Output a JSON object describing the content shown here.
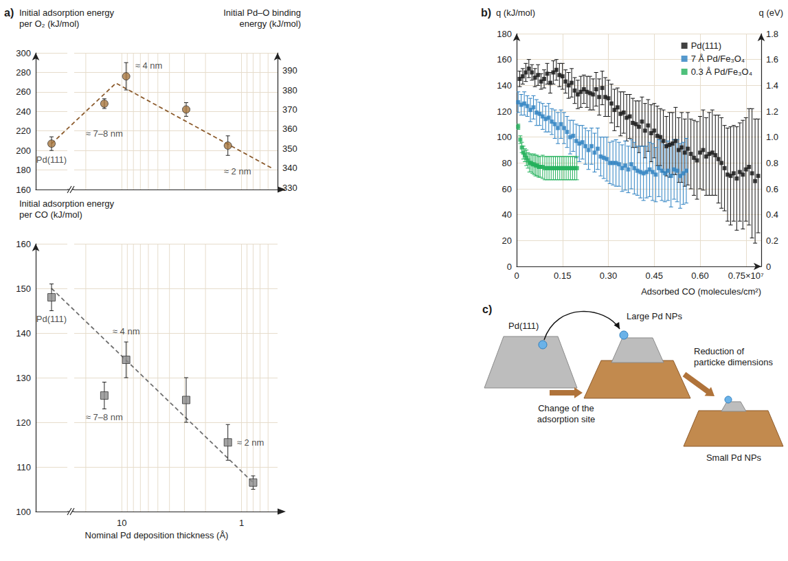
{
  "chart_data": [
    {
      "panel": "a)",
      "type": "scatter",
      "ylabel": "Initial adsorption energy per O₂ (kJ/mol)",
      "y2label": "Initial Pd–O binding energy (kJ/mol)",
      "reference": {
        "label": "Pd(111)",
        "value": 207,
        "error": 7
      },
      "x": [
        14,
        9.2,
        2.9,
        1.3
      ],
      "values": [
        248,
        276,
        242,
        205
      ],
      "errors": [
        5,
        14,
        7,
        10
      ],
      "point_labels": [
        "≈ 7–8 nm",
        "≈ 4 nm",
        null,
        "≈ 2 nm"
      ],
      "trend": {
        "reference_value": 207,
        "x": [
          11.2,
          0.56
        ],
        "values": [
          269,
          182
        ],
        "color": "#8b5a2b",
        "line_style": "dashed"
      },
      "color": "#a8773f",
      "marker": "circle",
      "log": "x",
      "xlim": [
        25,
        0.5
      ],
      "xticks": [
        10,
        1
      ],
      "xminorticks": [
        20,
        9,
        8,
        7,
        6,
        5,
        4,
        3,
        2,
        0.9,
        0.8,
        0.7,
        0.6
      ],
      "ylim": [
        160,
        300
      ],
      "yticks": [
        160,
        180,
        200,
        220,
        240,
        260,
        280,
        300
      ],
      "y2lim": [
        329,
        399
      ],
      "y2ticks": [
        330,
        340,
        350,
        360,
        370,
        380,
        390
      ],
      "grid": true,
      "tick_labels": "y"
    },
    {
      "type": "scatter",
      "ylabel": "Initial adsorption energy per CO (kJ/mol)",
      "xlabel": "Nominal Pd deposition thickness (Å)",
      "reference": {
        "label": "Pd(111)",
        "value": 148,
        "error": 3
      },
      "x": [
        14,
        9.2,
        2.9,
        1.3,
        0.8
      ],
      "values": [
        126,
        134,
        125,
        115.5,
        106.5
      ],
      "errors": [
        3,
        4,
        5,
        4,
        1.5
      ],
      "point_labels": [
        "≈ 7–8 nm",
        "≈ 4 nm",
        null,
        "≈ 2 nm",
        null
      ],
      "trend": {
        "reference_value": 150,
        "x": [
          0.8
        ],
        "values": [
          106.5
        ],
        "color": "#6e6e6e",
        "line_style": "dashed"
      },
      "color": "#8c8c8c",
      "marker": "square",
      "log": "x",
      "xlim": [
        25,
        0.5
      ],
      "xticks": [
        10,
        1
      ],
      "xminorticks": [
        20,
        9,
        8,
        7,
        6,
        5,
        4,
        3,
        2,
        0.9,
        0.8,
        0.7,
        0.6
      ],
      "ylim": [
        100,
        160
      ],
      "yticks": [
        100,
        110,
        120,
        130,
        140,
        150,
        160
      ],
      "grid": true
    },
    {
      "panel": "b)",
      "type": "scatter",
      "ylabel": "q (kJ/mol)",
      "y2label": "q (eV)",
      "xlabel": "Adsorbed CO (molecules/cm²)",
      "marker": "square",
      "legend": "upper right",
      "grid": true,
      "xlim": [
        0,
        0.8
      ],
      "xticks": [
        0,
        0.15,
        {
          "value": 0.3,
          "label": "0.30"
        },
        0.45,
        {
          "value": 0.6,
          "label": "0.60"
        },
        {
          "value": 0.75,
          "label": "0.75×10⁷"
        }
      ],
      "ylim": [
        0,
        180
      ],
      "yticks": [
        0,
        20,
        40,
        60,
        80,
        100,
        120,
        140,
        160,
        180
      ],
      "y2lim": [
        0,
        1.8
      ],
      "y2ticks": [
        0,
        0.2,
        0.4,
        0.6,
        0.8,
        {
          "value": 1,
          "label": "1.0"
        },
        1.2,
        1.4,
        1.6,
        1.8
      ],
      "series": [
        {
          "name": "Pd(111)",
          "color": "#111111",
          "x": [
            0.01,
            0.02,
            0.03,
            0.04,
            0.05,
            0.06,
            0.07,
            0.08,
            0.09,
            0.1,
            0.11,
            0.12,
            0.13,
            0.14,
            0.15,
            0.16,
            0.17,
            0.18,
            0.19,
            0.2,
            0.21,
            0.22,
            0.23,
            0.24,
            0.25,
            0.26,
            0.27,
            0.28,
            0.29,
            0.3,
            0.31,
            0.32,
            0.33,
            0.34,
            0.35,
            0.36,
            0.37,
            0.38,
            0.39,
            0.4,
            0.41,
            0.42,
            0.43,
            0.44,
            0.45,
            0.46,
            0.47,
            0.48,
            0.49,
            0.5,
            0.51,
            0.52,
            0.53,
            0.54,
            0.55,
            0.56,
            0.57,
            0.58,
            0.59,
            0.6,
            0.61,
            0.62,
            0.63,
            0.64,
            0.65,
            0.66,
            0.67,
            0.68,
            0.69,
            0.7,
            0.71,
            0.72,
            0.73,
            0.74,
            0.75,
            0.76,
            0.77,
            0.78,
            0.79
          ],
          "values": [
            145,
            147,
            150,
            153,
            150,
            146,
            148,
            143,
            145,
            149,
            142,
            150,
            152,
            148,
            147,
            143,
            140,
            142,
            136,
            133,
            135,
            137,
            135,
            134,
            133,
            137,
            131,
            138,
            131,
            130,
            126,
            121,
            123,
            118,
            119,
            115,
            116,
            111,
            110,
            108,
            112,
            105,
            109,
            103,
            105,
            101,
            100,
            97,
            93,
            94,
            95,
            97,
            90,
            92,
            88,
            91,
            87,
            84,
            82,
            88,
            90,
            85,
            87,
            88,
            86,
            83,
            80,
            76,
            71,
            70,
            72,
            68,
            73,
            71,
            75,
            77,
            72,
            66,
            70
          ],
          "errors": [
            6,
            6,
            7,
            7,
            6,
            7,
            8,
            6,
            7,
            8,
            8,
            9,
            8,
            9,
            10,
            9,
            10,
            11,
            10,
            11,
            12,
            11,
            12,
            13,
            12,
            13,
            14,
            13,
            15,
            14,
            15,
            16,
            15,
            17,
            16,
            18,
            17,
            19,
            18,
            20,
            19,
            21,
            20,
            22,
            21,
            23,
            22,
            24,
            23,
            25,
            24,
            26,
            25,
            27,
            26,
            28,
            27,
            29,
            30,
            28,
            31,
            30,
            32,
            33,
            31,
            34,
            35,
            33,
            36,
            38,
            37,
            40,
            38,
            42,
            40,
            45,
            50,
            48,
            44
          ]
        },
        {
          "name": "7 Å Pd/Fe₃O₄",
          "color": "#2a7fc1",
          "x": [
            0.005,
            0.015,
            0.025,
            0.035,
            0.045,
            0.055,
            0.065,
            0.075,
            0.085,
            0.095,
            0.105,
            0.115,
            0.125,
            0.135,
            0.145,
            0.155,
            0.165,
            0.175,
            0.185,
            0.195,
            0.205,
            0.215,
            0.225,
            0.235,
            0.245,
            0.255,
            0.265,
            0.275,
            0.285,
            0.295,
            0.305,
            0.315,
            0.325,
            0.335,
            0.345,
            0.355,
            0.365,
            0.375,
            0.385,
            0.395,
            0.405,
            0.415,
            0.425,
            0.435,
            0.445,
            0.455,
            0.465,
            0.475,
            0.485,
            0.495,
            0.505,
            0.515,
            0.525,
            0.535,
            0.545,
            0.555
          ],
          "values": [
            127,
            125,
            126,
            124,
            121,
            123,
            119,
            118,
            116,
            114,
            115,
            112,
            110,
            107,
            110,
            107,
            104,
            100,
            101,
            97,
            95,
            96,
            93,
            90,
            93,
            88,
            91,
            85,
            84,
            83,
            80,
            80,
            80,
            79,
            76,
            78,
            75,
            79,
            76,
            74,
            73,
            72,
            73,
            75,
            73,
            71,
            76,
            74,
            72,
            74,
            70,
            75,
            74,
            70,
            72,
            74
          ],
          "errors": [
            8,
            8,
            9,
            8,
            9,
            9,
            10,
            9,
            10,
            10,
            11,
            10,
            11,
            12,
            11,
            12,
            12,
            13,
            12,
            13,
            14,
            13,
            14,
            15,
            14,
            15,
            16,
            15,
            16,
            17,
            16,
            17,
            18,
            17,
            18,
            19,
            18,
            19,
            20,
            19,
            20,
            21,
            20,
            21,
            22,
            21,
            22,
            23,
            22,
            23,
            24,
            23,
            24,
            25,
            24,
            25
          ]
        },
        {
          "name": "0.3 Å Pd/Fe₃O₄",
          "color": "#22b05a",
          "x": [
            0.005,
            0.012,
            0.017,
            0.022,
            0.027,
            0.032,
            0.037,
            0.042,
            0.047,
            0.052,
            0.057,
            0.062,
            0.067,
            0.072,
            0.077,
            0.085,
            0.092,
            0.099,
            0.106,
            0.113,
            0.12,
            0.127,
            0.134,
            0.141,
            0.148,
            0.155,
            0.162,
            0.169,
            0.176,
            0.183,
            0.19,
            0.197
          ],
          "values": [
            108,
            98,
            92,
            88,
            86,
            84,
            82,
            80,
            80,
            79,
            79,
            78,
            78,
            77,
            77,
            77,
            76,
            76,
            76,
            76,
            76,
            76,
            76,
            76,
            76,
            76,
            76,
            76,
            76,
            76,
            76,
            76
          ],
          "errors": [
            2,
            3,
            4,
            5,
            5,
            6,
            6,
            7,
            7,
            7,
            8,
            8,
            8,
            8,
            8,
            9,
            9,
            9,
            9,
            9,
            9,
            9,
            9,
            9,
            9,
            9,
            9,
            9,
            9,
            9,
            9,
            9
          ]
        }
      ]
    }
  ],
  "diagram": {
    "panel": "c)",
    "nodes": [
      {
        "label": "Pd(111)"
      },
      {
        "label": "Large Pd NPs"
      },
      {
        "label": "Small Pd NPs"
      }
    ],
    "steps": [
      {
        "label": "Change of the adsorption site"
      },
      {
        "label": "Reduction of particke dimensions"
      }
    ]
  }
}
